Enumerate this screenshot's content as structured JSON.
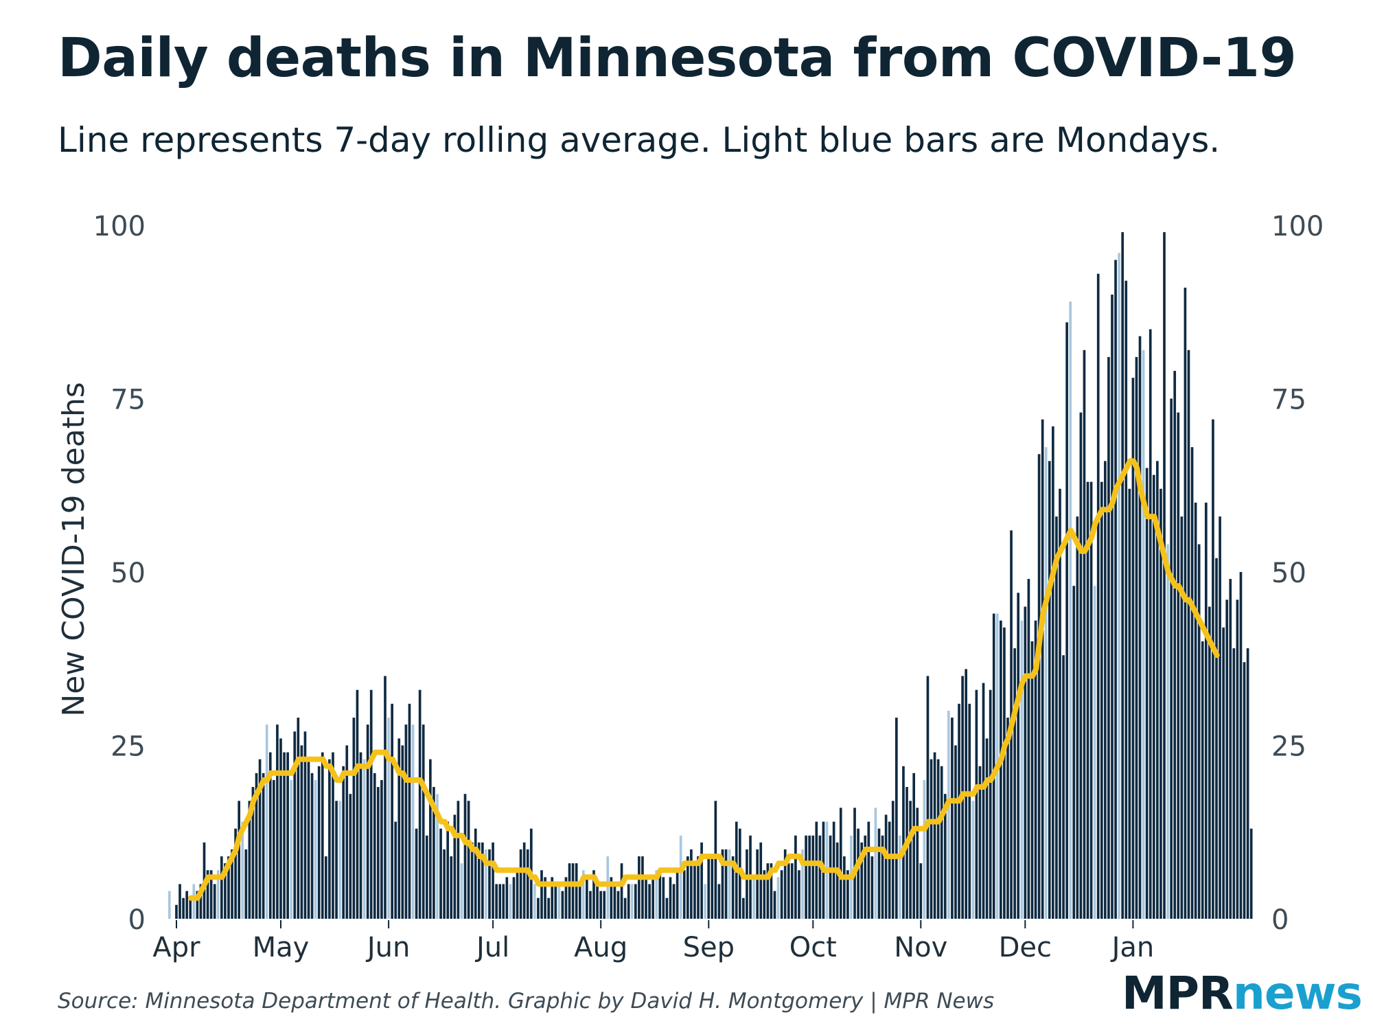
{
  "header": {
    "title": "Daily deaths in Minnesota from COVID-19",
    "subtitle": "Line represents 7-day rolling average. Light blue bars are Mondays."
  },
  "footer": {
    "source": "Source: Minnesota Department of Health. Graphic by David H. Montgomery | MPR News",
    "logo_mpr": "MPR",
    "logo_news": "news"
  },
  "colors": {
    "bar": "#0f2a42",
    "monday_bar": "#a9c7dd",
    "rolling_line": "#f5c21b",
    "text": "#0f2533",
    "logo_news": "#1aa0cf"
  },
  "chart_data": {
    "type": "bar",
    "title": "Daily deaths in Minnesota from COVID-19",
    "subtitle": "Line represents 7-day rolling average. Light blue bars are Mondays.",
    "ylabel": "New COVID-19 deaths",
    "xlabel": "",
    "ylim": [
      0,
      100
    ],
    "yticks": [
      0,
      25,
      50,
      75,
      100
    ],
    "y_axis_sides": [
      "left",
      "right"
    ],
    "x_tick_labels": [
      "Apr",
      "May",
      "Jun",
      "Jul",
      "Aug",
      "Sep",
      "Oct",
      "Nov",
      "Dec",
      "Jan"
    ],
    "x_tick_day_offsets": [
      0,
      30,
      61,
      91,
      122,
      153,
      183,
      214,
      244,
      275
    ],
    "start_date": "2020-03-30",
    "grid": false,
    "legend": "none",
    "series": [
      {
        "name": "Daily deaths",
        "values": [
          4,
          0,
          2,
          5,
          3,
          4,
          3,
          5,
          4,
          5,
          11,
          7,
          7,
          5,
          7,
          9,
          8,
          9,
          10,
          13,
          17,
          14,
          10,
          17,
          19,
          21,
          23,
          21,
          28,
          24,
          20,
          28,
          26,
          24,
          24,
          20,
          27,
          29,
          25,
          27,
          23,
          21,
          20,
          22,
          24,
          9,
          23,
          24,
          17,
          17,
          22,
          25,
          18,
          29,
          33,
          24,
          23,
          28,
          33,
          21,
          19,
          20,
          35,
          29,
          31,
          14,
          26,
          25,
          28,
          31,
          28,
          13,
          33,
          28,
          12,
          23,
          19,
          18,
          13,
          10,
          14,
          9,
          15,
          17,
          8,
          18,
          17,
          11,
          13,
          11,
          11,
          10,
          10,
          11,
          5,
          5,
          5,
          6,
          5,
          6,
          7,
          10,
          11,
          10,
          13,
          5,
          3,
          7,
          6,
          3,
          6,
          5,
          5,
          4,
          6,
          8,
          8,
          8,
          5,
          7,
          6,
          4,
          7,
          5,
          4,
          4,
          9,
          6,
          5,
          4,
          8,
          3,
          5,
          5,
          5,
          9,
          9,
          6,
          5,
          6,
          7,
          7,
          6,
          3,
          6,
          5,
          7,
          12,
          7,
          9,
          10,
          8,
          9,
          11,
          5,
          9,
          9,
          17,
          5,
          10,
          10,
          10,
          9,
          14,
          13,
          3,
          10,
          12,
          6,
          10,
          11,
          7,
          8,
          8,
          4,
          6,
          7,
          10,
          8,
          8,
          12,
          7,
          10,
          12,
          12,
          12,
          14,
          12,
          14,
          14,
          12,
          14,
          11,
          16,
          9,
          7,
          12,
          16,
          13,
          11,
          12,
          14,
          9,
          16,
          13,
          12,
          15,
          14,
          17,
          29,
          12,
          22,
          19,
          17,
          21,
          16,
          8,
          20,
          35,
          23,
          24,
          23,
          22,
          18,
          30,
          29,
          25,
          31,
          35,
          36,
          31,
          17,
          33,
          22,
          34,
          26,
          33,
          44,
          44,
          43,
          42,
          29,
          56,
          39,
          47,
          43,
          45,
          49,
          40,
          43,
          67,
          72,
          68,
          66,
          71,
          58,
          62,
          38,
          86,
          89,
          48,
          58,
          73,
          82,
          63,
          63,
          48,
          93,
          63,
          66,
          81,
          90,
          95,
          96,
          99,
          92,
          62,
          78,
          81,
          84,
          82,
          65,
          85,
          64,
          66,
          62,
          99,
          54,
          75,
          79,
          73,
          58,
          91,
          82,
          68,
          60,
          54,
          40,
          60,
          45,
          72,
          52,
          58,
          42,
          46,
          49,
          39,
          46,
          50,
          37,
          39,
          13
        ],
        "mondays": [
          0,
          7,
          14,
          21,
          28,
          35,
          42,
          49,
          56,
          63,
          70,
          77,
          84,
          91,
          98,
          105,
          112,
          119,
          126,
          133,
          140,
          147,
          154,
          161,
          168,
          175,
          182,
          189,
          196,
          203,
          210,
          217,
          224,
          231,
          238,
          245,
          252,
          259,
          266,
          273,
          280,
          287
        ]
      },
      {
        "name": "7-day rolling average",
        "values": [
          3,
          3,
          3,
          3,
          3,
          3,
          3,
          3,
          3,
          4,
          5,
          6,
          6,
          6,
          6,
          6,
          7,
          8,
          9,
          10,
          12,
          13,
          14,
          15,
          17,
          18,
          19,
          20,
          20,
          21,
          21,
          21,
          21,
          21,
          21,
          21,
          22,
          23,
          23,
          23,
          23,
          23,
          23,
          23,
          23,
          22,
          22,
          21,
          20,
          20,
          21,
          21,
          21,
          21,
          22,
          22,
          22,
          22,
          23,
          24,
          24,
          24,
          24,
          23,
          23,
          22,
          21,
          21,
          20,
          20,
          20,
          20,
          20,
          19,
          18,
          17,
          16,
          15,
          14,
          14,
          13,
          13,
          12,
          12,
          12,
          11,
          11,
          10,
          10,
          9,
          9,
          8,
          8,
          8,
          7,
          7,
          7,
          7,
          7,
          7,
          7,
          7,
          7,
          7,
          6,
          6,
          5,
          5,
          5,
          5,
          5,
          5,
          5,
          5,
          5,
          5,
          5,
          5,
          5,
          6,
          6,
          6,
          6,
          5,
          5,
          5,
          5,
          5,
          5,
          5,
          5,
          6,
          6,
          6,
          6,
          6,
          6,
          6,
          6,
          6,
          6,
          7,
          7,
          7,
          7,
          7,
          7,
          7,
          8,
          8,
          8,
          8,
          8,
          9,
          9,
          9,
          9,
          9,
          9,
          8,
          8,
          8,
          8,
          7,
          7,
          6,
          6,
          6,
          6,
          6,
          6,
          6,
          6,
          7,
          7,
          8,
          8,
          8,
          9,
          9,
          9,
          9,
          8,
          8,
          8,
          8,
          8,
          8,
          7,
          7,
          7,
          7,
          7,
          6,
          6,
          6,
          6,
          7,
          8,
          9,
          10,
          10,
          10,
          10,
          10,
          10,
          9,
          9,
          9,
          9,
          9,
          10,
          11,
          12,
          13,
          13,
          13,
          13,
          14,
          14,
          14,
          14,
          15,
          16,
          17,
          17,
          17,
          17,
          18,
          18,
          18,
          18,
          19,
          19,
          19,
          20,
          20,
          21,
          22,
          23,
          25,
          26,
          28,
          30,
          32,
          34,
          35,
          35,
          35,
          36,
          40,
          44,
          46,
          48,
          50,
          52,
          53,
          54,
          55,
          56,
          55,
          54,
          53,
          53,
          54,
          55,
          57,
          58,
          59,
          59,
          59,
          60,
          62,
          63,
          64,
          65,
          66,
          66,
          65,
          62,
          60,
          58,
          58,
          58,
          56,
          54,
          52,
          50,
          49,
          48,
          48,
          47,
          46,
          46,
          45,
          44,
          43,
          42,
          41,
          40,
          39,
          38
        ]
      }
    ]
  }
}
